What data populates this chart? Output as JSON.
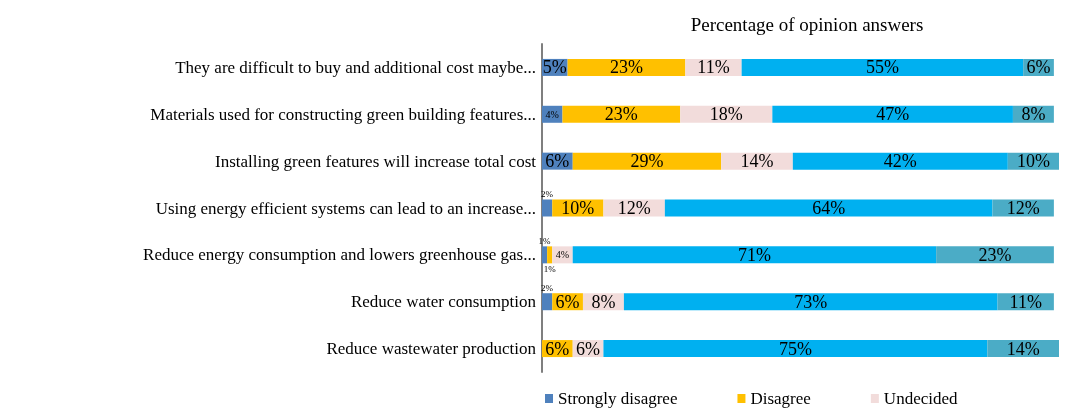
{
  "chart_data": {
    "type": "bar",
    "orientation": "horizontal",
    "stacked": true,
    "title": "Percentage of opinion answers",
    "categories": [
      "They are difficult to buy and additional cost maybe...",
      "Materials used for constructing green building features...",
      "Installing green features will increase total cost",
      "Using energy efficient systems can lead to an increase...",
      "Reduce energy consumption and lowers greenhouse gas...",
      "Reduce water consumption",
      "Reduce wastewater production"
    ],
    "series": [
      {
        "name": "Strongly disagree",
        "color": "#4f81bd",
        "values": [
          5,
          4,
          6,
          2,
          1,
          2,
          0
        ],
        "value_labels": [
          "5%",
          "4%",
          "6%",
          "2%",
          "1%",
          "2%",
          null
        ]
      },
      {
        "name": "Disagree",
        "color": "#ffc000",
        "values": [
          23,
          23,
          29,
          10,
          1,
          6,
          6
        ],
        "value_labels": [
          "23%",
          "23%",
          "29%",
          "10%",
          "1%",
          "6%",
          "6%"
        ]
      },
      {
        "name": "Undecided",
        "color": "#f2dcdb",
        "values": [
          11,
          18,
          14,
          12,
          4,
          8,
          6
        ],
        "value_labels": [
          "11%",
          "18%",
          "14%",
          "12%",
          "4%",
          "8%",
          "6%"
        ]
      },
      {
        "color": "#00b0f0",
        "values": [
          55,
          47,
          42,
          64,
          71,
          73,
          75
        ],
        "value_labels": [
          "55%",
          "47%",
          "42%",
          "64%",
          "71%",
          "73%",
          "75%"
        ]
      },
      {
        "color": "#4bacc6",
        "values": [
          6,
          8,
          10,
          12,
          23,
          11,
          14
        ],
        "value_labels": [
          "6%",
          "8%",
          "10%",
          "12%",
          "23%",
          "11%",
          "14%"
        ]
      }
    ],
    "xlim": [
      0,
      101
    ],
    "tick_labels": "y",
    "grid": false,
    "legend": "bottom"
  }
}
